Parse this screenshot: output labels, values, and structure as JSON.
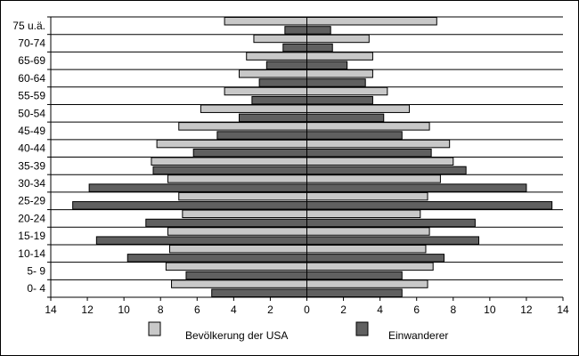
{
  "chart_data": {
    "type": "bar",
    "orientation": "horizontal-population-pyramid",
    "categories": [
      "0- 4",
      "5- 9",
      "10-14",
      "15-19",
      "20-24",
      "25-29",
      "30-34",
      "35-39",
      "40-44",
      "45-49",
      "50-54",
      "55-59",
      "60-64",
      "65-69",
      "70-74",
      "75 u.ä."
    ],
    "series": [
      {
        "name": "Bevölkerung der USA",
        "color": "#c8c8c8",
        "male": [
          7.4,
          7.7,
          7.5,
          7.6,
          6.8,
          7.0,
          7.6,
          8.5,
          8.2,
          7.0,
          5.8,
          4.5,
          3.7,
          3.3,
          2.9,
          4.5
        ],
        "female": [
          6.6,
          6.9,
          6.5,
          6.7,
          6.2,
          6.6,
          7.3,
          8.0,
          7.8,
          6.7,
          5.6,
          4.4,
          3.6,
          3.6,
          3.4,
          7.1
        ]
      },
      {
        "name": "Einwanderer",
        "color": "#606060",
        "male": [
          5.2,
          6.6,
          9.8,
          11.5,
          8.8,
          12.8,
          11.9,
          8.4,
          6.2,
          4.9,
          3.7,
          3.0,
          2.6,
          2.2,
          1.3,
          1.2
        ],
        "female": [
          5.2,
          5.2,
          7.5,
          9.4,
          9.2,
          13.4,
          12.0,
          8.7,
          6.8,
          5.2,
          4.2,
          3.6,
          3.2,
          2.2,
          1.4,
          1.3
        ]
      }
    ],
    "x_ticks": [
      14,
      12,
      10,
      8,
      6,
      4,
      2,
      0,
      2,
      4,
      6,
      8,
      10,
      12,
      14
    ],
    "xlim": [
      -14,
      14
    ],
    "grid": "horizontal",
    "legend_position": "bottom"
  }
}
